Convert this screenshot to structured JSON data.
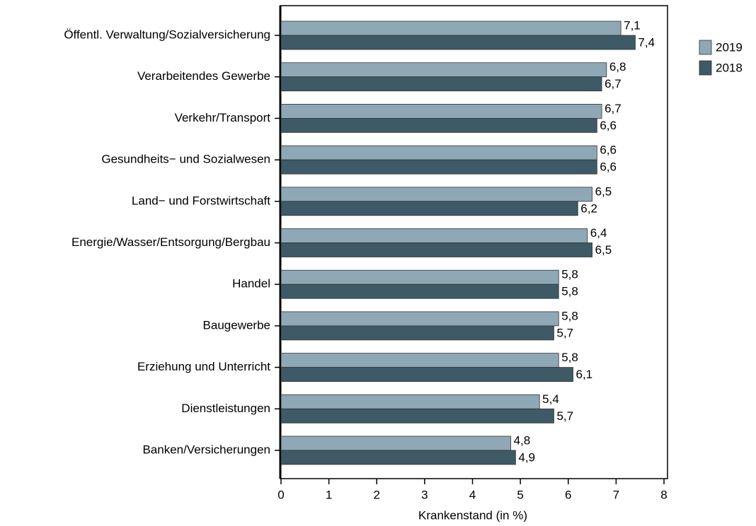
{
  "chart_data": {
    "type": "hbar",
    "xlabel": "Krankenstand (in %)",
    "categories": [
      "Öffentl. Verwaltung/Sozialversicherung",
      "Verarbeitendes Gewerbe",
      "Verkehr/Transport",
      "Gesundheits− und Sozialwesen",
      "Land− und Forstwirtschaft",
      "Energie/Wasser/Entsorgung/Bergbau",
      "Handel",
      "Baugewerbe",
      "Erziehung und Unterricht",
      "Dienstleistungen",
      "Banken/Versicherungen"
    ],
    "series": [
      {
        "name": "2019",
        "color": "#8fa8b5",
        "values": [
          7.1,
          6.8,
          6.7,
          6.6,
          6.5,
          6.4,
          5.8,
          5.8,
          5.8,
          5.4,
          4.8
        ],
        "value_labels": [
          "7,1",
          "6,8",
          "6,7",
          "6,6",
          "6,5",
          "6,4",
          "5,8",
          "5,8",
          "5,8",
          "5,4",
          "4,8"
        ]
      },
      {
        "name": "2018",
        "color": "#3d5a66",
        "values": [
          7.4,
          6.7,
          6.6,
          6.6,
          6.2,
          6.5,
          5.8,
          5.7,
          6.1,
          5.7,
          4.9
        ],
        "value_labels": [
          "7,4",
          "6,7",
          "6,6",
          "6,6",
          "6,2",
          "6,5",
          "5,8",
          "5,7",
          "6,1",
          "5,7",
          "4,9"
        ]
      }
    ],
    "xlim": [
      0,
      8
    ],
    "xticks": [
      0,
      1,
      2,
      3,
      4,
      5,
      6,
      7,
      8
    ],
    "legend": "right"
  }
}
